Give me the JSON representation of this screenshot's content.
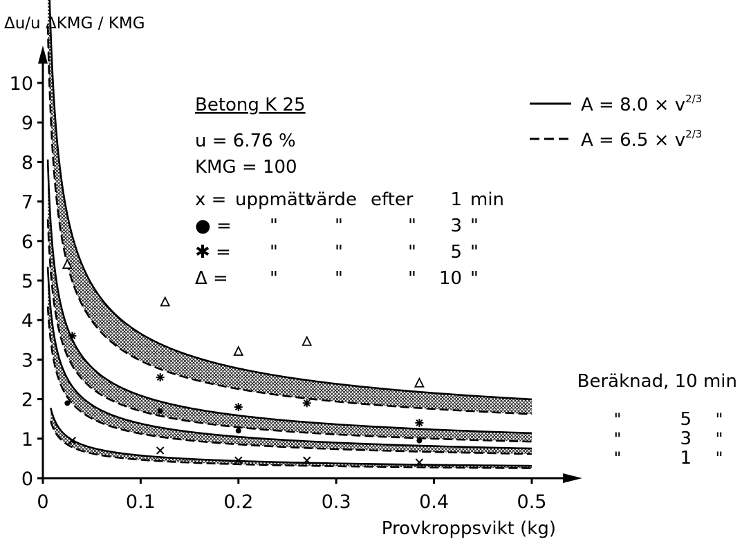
{
  "chart_data": {
    "type": "line",
    "ylabel": "Δu/u  ΔKMG / KMG",
    "xlabel": "Provkroppsvikt (kg)",
    "xlim": [
      0,
      0.5
    ],
    "ylim": [
      0,
      10
    ],
    "x_ticks": [
      "0",
      "0.1",
      "0.2",
      "0.3",
      "0.4",
      "0.5"
    ],
    "y_ticks": [
      "0",
      "1",
      "2",
      "3",
      "4",
      "5",
      "6",
      "7",
      "8",
      "9",
      "10"
    ],
    "grid": false,
    "info": {
      "title": "Betong  K 25",
      "u_line": "u = 6.76 %",
      "kmg_line": "KMG = 100",
      "marker_rows": [
        {
          "symbol": "x =",
          "c1": "uppmätt",
          "c2": "värde",
          "c3": "efter",
          "value": "1",
          "unit": "min"
        },
        {
          "symbol": "● =",
          "c1": "\"",
          "c2": "\"",
          "c3": "\"",
          "value": "3",
          "unit": "\""
        },
        {
          "symbol": "✱ =",
          "c1": "\"",
          "c2": "\"",
          "c3": "\"",
          "value": "5",
          "unit": "\""
        },
        {
          "symbol": "Δ =",
          "c1": "\"",
          "c2": "\"",
          "c3": "\"",
          "value": "10",
          "unit": "\""
        }
      ]
    },
    "legend": [
      {
        "style": "solid",
        "label": "A = 8.0 × v",
        "exp": "2/3"
      },
      {
        "style": "dashed",
        "label": "A = 6.5 × v",
        "exp": "2/3"
      }
    ],
    "right_labels": {
      "heading": "Beräknad, 10 min",
      "rows": [
        {
          "ditto": "\"",
          "value": "5",
          "unit": "\""
        },
        {
          "ditto": "\"",
          "value": "3",
          "unit": "\""
        },
        {
          "ditto": "\"",
          "value": "1",
          "unit": "\""
        }
      ]
    },
    "bands": [
      {
        "minutes": 10,
        "upper": {
          "coef": 0.951,
          "const": 0.65
        },
        "lower": {
          "coef": 0.772,
          "const": 0.53
        },
        "x_start": 0.005
      },
      {
        "minutes": 5,
        "upper": {
          "coef": 0.544,
          "const": 0.37
        },
        "lower": {
          "coef": 0.442,
          "const": 0.3
        },
        "x_start": 0.005
      },
      {
        "minutes": 3,
        "upper": {
          "coef": 0.361,
          "const": 0.24
        },
        "lower": {
          "coef": 0.293,
          "const": 0.2
        },
        "x_start": 0.005
      },
      {
        "minutes": 1,
        "upper": {
          "coef": 0.15,
          "const": 0.1
        },
        "lower": {
          "coef": 0.122,
          "const": 0.08
        },
        "x_start": 0.008
      }
    ],
    "series": [
      {
        "name": "x = uppmätt värde efter 1 min",
        "marker": "x",
        "points": [
          [
            0.03,
            0.95
          ],
          [
            0.12,
            0.7
          ],
          [
            0.2,
            0.45
          ],
          [
            0.27,
            0.45
          ],
          [
            0.385,
            0.4
          ]
        ]
      },
      {
        "name": "● = \" \" \" 3 \"",
        "marker": "dot",
        "points": [
          [
            0.025,
            1.9
          ],
          [
            0.12,
            1.7
          ],
          [
            0.2,
            1.2
          ],
          [
            0.385,
            0.95
          ]
        ]
      },
      {
        "name": "✱ = \" \" \" 5 \"",
        "marker": "star",
        "points": [
          [
            0.03,
            3.6
          ],
          [
            0.12,
            2.55
          ],
          [
            0.2,
            1.8
          ],
          [
            0.27,
            1.9
          ],
          [
            0.385,
            1.4
          ]
        ]
      },
      {
        "name": "Δ = \" \" \" 10 \"",
        "marker": "triangle",
        "points": [
          [
            0.025,
            5.4
          ],
          [
            0.125,
            4.45
          ],
          [
            0.2,
            3.2
          ],
          [
            0.27,
            3.45
          ],
          [
            0.385,
            2.4
          ]
        ]
      }
    ]
  }
}
